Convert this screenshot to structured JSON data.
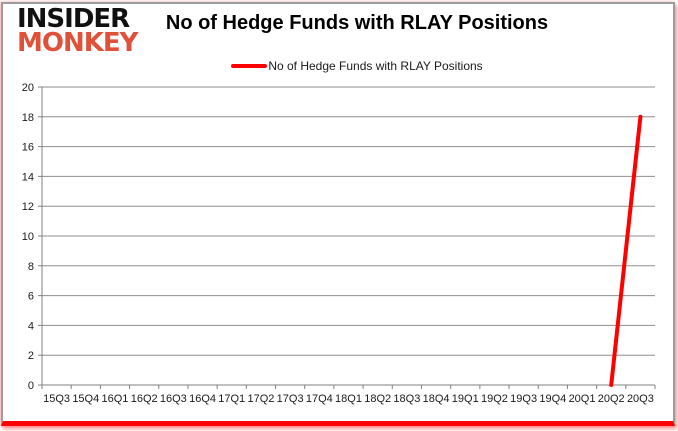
{
  "logo": {
    "line1": "INSIDER",
    "line2": "MONKEY",
    "line1_color": "#111111",
    "line2_color": "#e0513a"
  },
  "header": {
    "title": "No of Hedge Funds with RLAY Positions"
  },
  "legend": {
    "label": "No of Hedge Funds with RLAY Positions",
    "marker_color": "#ff0000"
  },
  "chart_data": {
    "type": "line",
    "title": "No of Hedge Funds with RLAY Positions",
    "categories": [
      "15Q3",
      "15Q4",
      "16Q1",
      "16Q2",
      "16Q3",
      "16Q4",
      "17Q1",
      "17Q2",
      "17Q3",
      "17Q4",
      "18Q1",
      "18Q2",
      "18Q3",
      "18Q4",
      "19Q1",
      "19Q2",
      "19Q3",
      "19Q4",
      "20Q1",
      "20Q2",
      "20Q3"
    ],
    "series": [
      {
        "name": "No of Hedge Funds with RLAY Positions",
        "color": "#ff0000",
        "values": [
          null,
          null,
          null,
          null,
          null,
          null,
          null,
          null,
          null,
          null,
          null,
          null,
          null,
          null,
          null,
          null,
          null,
          null,
          null,
          0,
          18
        ]
      }
    ],
    "xlabel": "",
    "ylabel": "",
    "ylim": [
      0,
      20
    ],
    "ytick_step": 2,
    "grid": true,
    "grid_color": "#8e8e8e",
    "axis_color": "#808080",
    "tick_label_color": "#1a1a1a",
    "legend_position": "top-center"
  },
  "frame": {
    "border_color": "#9c9c9c",
    "bottom_bar_color": "#ff0000",
    "background": "#ffffff"
  }
}
